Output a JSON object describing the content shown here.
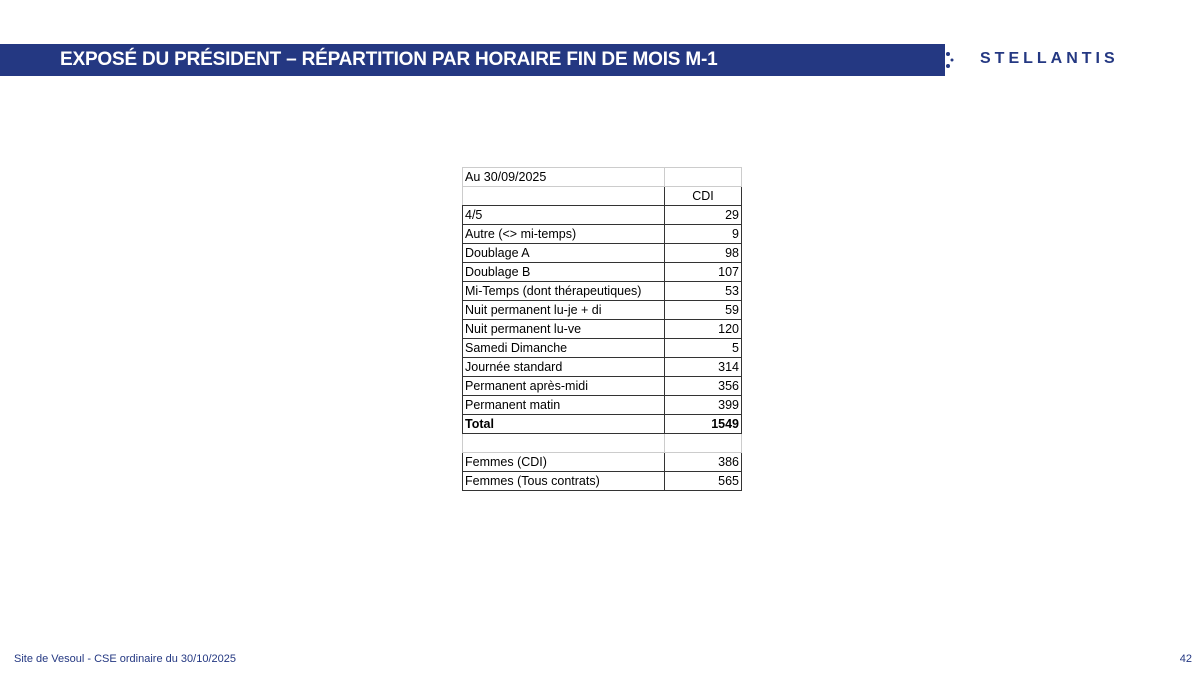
{
  "header": {
    "title": "EXPOSÉ DU PRÉSIDENT – RÉPARTITION PAR HORAIRE FIN DE MOIS M-1",
    "logo": "STELLANTIS",
    "color": "#243882"
  },
  "table": {
    "date_label": "Au 30/09/2025",
    "column_header": "CDI",
    "rows": [
      {
        "label": "4/5",
        "value": "29"
      },
      {
        "label": "Autre (<> mi-temps)",
        "value": "9"
      },
      {
        "label": "Doublage A",
        "value": "98"
      },
      {
        "label": "Doublage B",
        "value": "107"
      },
      {
        "label": "Mi-Temps (dont thérapeutiques)",
        "value": "53"
      },
      {
        "label": "Nuit permanent lu-je + di",
        "value": "59"
      },
      {
        "label": "Nuit permanent lu-ve",
        "value": "120"
      },
      {
        "label": "Samedi Dimanche",
        "value": "5"
      },
      {
        "label": "Journée standard",
        "value": "314"
      },
      {
        "label": "Permanent après-midi",
        "value": "356"
      },
      {
        "label": "Permanent matin",
        "value": "399"
      }
    ],
    "total": {
      "label": "Total",
      "value": "1549"
    },
    "women": [
      {
        "label": "Femmes (CDI)",
        "value": "386"
      },
      {
        "label": "Femmes (Tous contrats)",
        "value": "565"
      }
    ]
  },
  "footer": {
    "text": "Site de Vesoul - CSE ordinaire du 30/10/2025",
    "page": "42"
  }
}
